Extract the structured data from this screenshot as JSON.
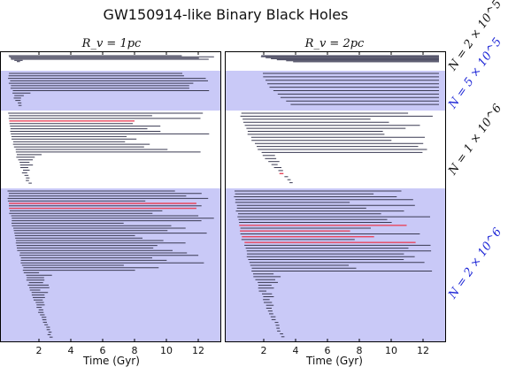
{
  "title": "GW150914-like Binary Black Holes",
  "colors": {
    "band": "#c9c9f7",
    "line": "#3a3a52",
    "highlight": "#e8455c",
    "label_black": "#111111",
    "label_blue": "#1c25d6"
  },
  "chart_data": {
    "type": "bar",
    "orientation": "horizontal",
    "xlabel": "Time (Gyr)",
    "xlim": [
      0,
      13
    ],
    "xticks": [
      "2",
      "4",
      "6",
      "8",
      "10",
      "12"
    ],
    "grid": false,
    "panels": [
      {
        "title": "R_v = 1pc",
        "groups": [
          {
            "label": "N = 2 × 10^5",
            "color": "black",
            "shaded": false,
            "n": 6,
            "start_min": 0.0,
            "start_max": 0.5,
            "end_min": 6.5,
            "end_max": 13.0,
            "highlight_rows": []
          },
          {
            "label": "N = 5 × 10^5",
            "color": "blue",
            "shaded": true,
            "n": 14,
            "start_min": 0.0,
            "start_max": 0.6,
            "end_min": 7.5,
            "end_max": 13.0,
            "highlight_rows": []
          },
          {
            "label": "N = 1 × 10^6",
            "color": "black",
            "shaded": false,
            "n": 28,
            "start_min": 0.0,
            "start_max": 1.2,
            "end_min": 0.5,
            "end_max": 13.0,
            "highlight_rows": [
              3
            ]
          },
          {
            "label": "N = 2 × 10^6",
            "color": "blue",
            "shaded": true,
            "n": 60,
            "start_min": 0.0,
            "start_max": 2.6,
            "end_min": 0.3,
            "end_max": 13.0,
            "highlight_rows": [
              5,
              7
            ]
          }
        ]
      },
      {
        "title": "R_v = 2pc",
        "groups": [
          {
            "label": "N = 2 × 10^5",
            "color": "black",
            "shaded": false,
            "n": 7,
            "start_min": 1.7,
            "start_max": 3.8,
            "end_min": 12.9,
            "end_max": 13.0,
            "highlight_rows": []
          },
          {
            "label": "N = 5 × 10^5",
            "color": "blue",
            "shaded": true,
            "n": 10,
            "start_min": 1.8,
            "start_max": 3.6,
            "end_min": 12.9,
            "end_max": 13.0,
            "highlight_rows": []
          },
          {
            "label": "N = 1 × 10^6",
            "color": "black",
            "shaded": false,
            "n": 24,
            "start_min": 0.5,
            "start_max": 3.6,
            "end_min": 3.2,
            "end_max": 13.0,
            "highlight_rows": [
              20
            ]
          },
          {
            "label": "N = 2 × 10^6",
            "color": "blue",
            "shaded": true,
            "n": 52,
            "start_min": 0.1,
            "start_max": 3.0,
            "end_min": 0.5,
            "end_max": 12.6,
            "highlight_rows": [
              12,
              14,
              16,
              18
            ]
          }
        ]
      }
    ],
    "group_labels": [
      {
        "text": "N = 2 × 10^5",
        "color": "black"
      },
      {
        "text": "N = 5 × 10^5",
        "color": "blue"
      },
      {
        "text": "N = 1 × 10^6",
        "color": "black"
      },
      {
        "text": "N = 2 × 10^6",
        "color": "blue"
      }
    ]
  }
}
